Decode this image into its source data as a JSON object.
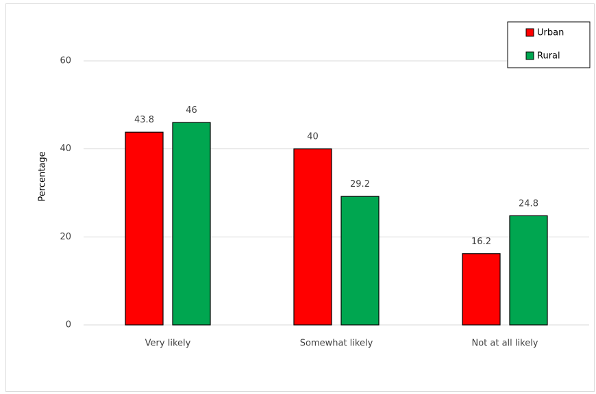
{
  "chart_data": {
    "type": "bar",
    "title": "",
    "xlabel": "",
    "ylabel": "Percentage",
    "ylim": [
      0,
      60
    ],
    "yticks": [
      0,
      20,
      40,
      60
    ],
    "grid": true,
    "legend_position": "top-right",
    "categories": [
      "Very likely",
      "Somewhat likely",
      "Not at all likely"
    ],
    "series": [
      {
        "name": "Urban",
        "color": "#ff0000",
        "values": [
          43.8,
          40,
          16.2
        ],
        "labels": [
          "43.8",
          "40",
          "16.2"
        ]
      },
      {
        "name": "Rural",
        "color": "#00a650",
        "values": [
          46,
          29.2,
          24.8
        ],
        "labels": [
          "46",
          "29.2",
          "24.8"
        ]
      }
    ]
  }
}
